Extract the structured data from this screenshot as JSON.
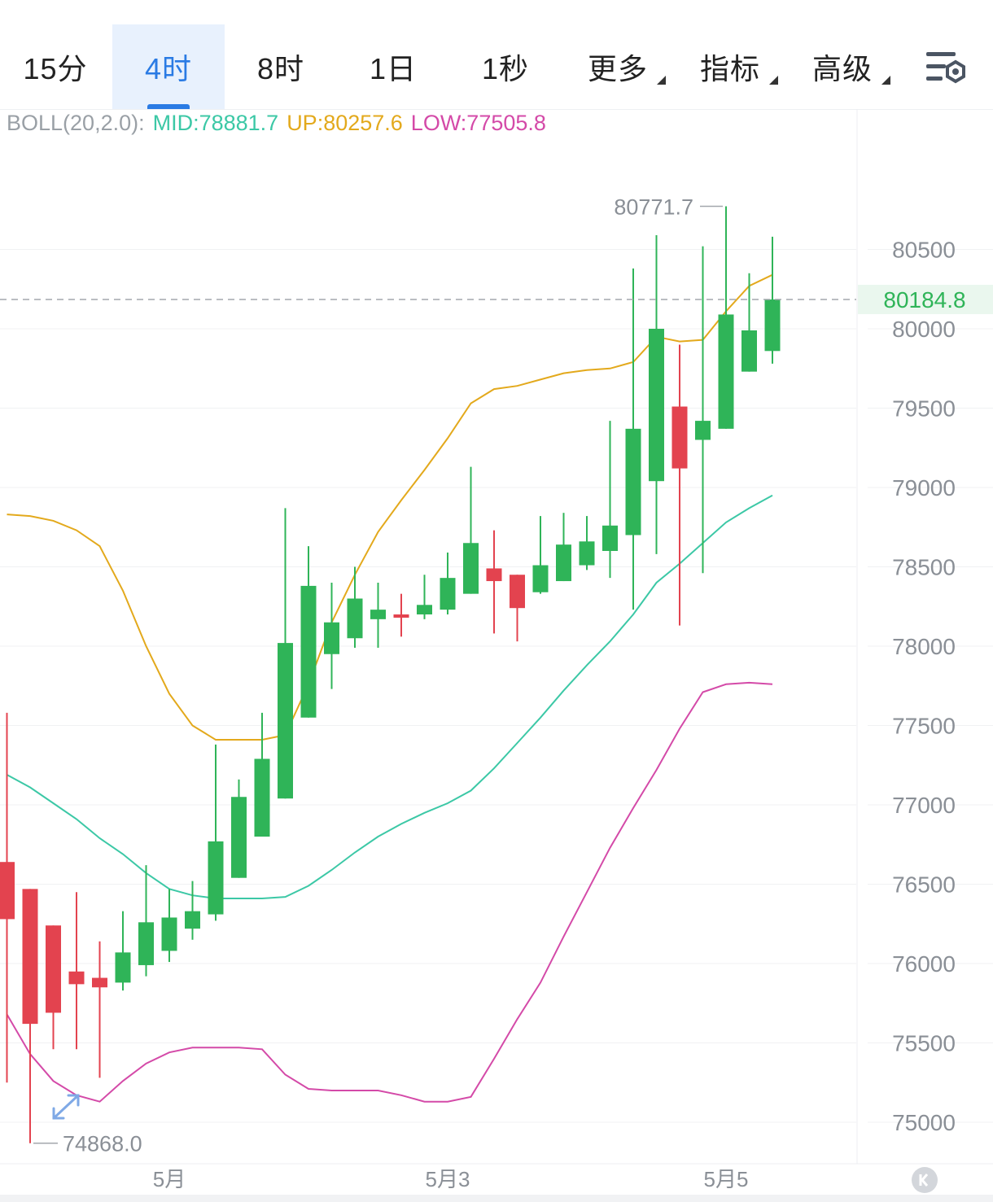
{
  "tabs": [
    {
      "label": "15分",
      "active": false,
      "dropdown": false
    },
    {
      "label": "4时",
      "active": true,
      "dropdown": false
    },
    {
      "label": "8时",
      "active": false,
      "dropdown": false
    },
    {
      "label": "1日",
      "active": false,
      "dropdown": false
    },
    {
      "label": "1秒",
      "active": false,
      "dropdown": false
    },
    {
      "label": "更多",
      "active": false,
      "dropdown": true
    },
    {
      "label": "指标",
      "active": false,
      "dropdown": true
    },
    {
      "label": "高级",
      "active": false,
      "dropdown": true
    }
  ],
  "settings_icon": "chart-settings-icon",
  "indicator": {
    "name": "BOLL(20,2.0):",
    "mid": "MID:78881.7",
    "up": "UP:80257.6",
    "low": "LOW:77505.8"
  },
  "colors": {
    "accent": "#2a7be4",
    "up_candle": "#2fb458",
    "down_candle": "#e3434f",
    "mid_line": "#3cc8a6",
    "up_line": "#e3a91c",
    "low_line": "#d44aa8",
    "current_price": "#2fb458"
  },
  "chart_data": {
    "type": "candlestick",
    "interval": "4时",
    "y_ticks": [
      "80500",
      "80000",
      "79500",
      "79000",
      "78500",
      "78000",
      "77500",
      "77000",
      "76500",
      "76000",
      "75500",
      "75000"
    ],
    "ylim": [
      74750,
      81000
    ],
    "x_labels": [
      {
        "label": "5月",
        "index": 7
      },
      {
        "label": "5月3",
        "index": 19
      },
      {
        "label": "5月5",
        "index": 31
      }
    ],
    "current_price": "80184.8",
    "max_label": "80771.7",
    "min_label": "74868.0",
    "candles": [
      {
        "o": 76640,
        "h": 77580,
        "l": 75250,
        "c": 76280
      },
      {
        "o": 76470,
        "h": 76470,
        "l": 74868,
        "c": 75620
      },
      {
        "o": 76240,
        "h": 76240,
        "l": 75460,
        "c": 75690
      },
      {
        "o": 75950,
        "h": 76450,
        "l": 75460,
        "c": 75870
      },
      {
        "o": 75910,
        "h": 76140,
        "l": 75280,
        "c": 75850
      },
      {
        "o": 75880,
        "h": 76330,
        "l": 75830,
        "c": 76070
      },
      {
        "o": 75990,
        "h": 76620,
        "l": 75920,
        "c": 76260
      },
      {
        "o": 76080,
        "h": 76470,
        "l": 76010,
        "c": 76290
      },
      {
        "o": 76220,
        "h": 76520,
        "l": 76150,
        "c": 76330
      },
      {
        "o": 76310,
        "h": 77380,
        "l": 76270,
        "c": 76770
      },
      {
        "o": 76540,
        "h": 77160,
        "l": 76540,
        "c": 77050
      },
      {
        "o": 76800,
        "h": 77580,
        "l": 76800,
        "c": 77290
      },
      {
        "o": 77040,
        "h": 78870,
        "l": 77040,
        "c": 78020
      },
      {
        "o": 77550,
        "h": 78630,
        "l": 77550,
        "c": 78380
      },
      {
        "o": 77950,
        "h": 78400,
        "l": 77730,
        "c": 78150
      },
      {
        "o": 78050,
        "h": 78500,
        "l": 77990,
        "c": 78300
      },
      {
        "o": 78170,
        "h": 78400,
        "l": 77990,
        "c": 78230
      },
      {
        "o": 78200,
        "h": 78330,
        "l": 78060,
        "c": 78180
      },
      {
        "o": 78200,
        "h": 78450,
        "l": 78170,
        "c": 78260
      },
      {
        "o": 78230,
        "h": 78590,
        "l": 78200,
        "c": 78430
      },
      {
        "o": 78330,
        "h": 79130,
        "l": 78330,
        "c": 78650
      },
      {
        "o": 78490,
        "h": 78730,
        "l": 78080,
        "c": 78410
      },
      {
        "o": 78450,
        "h": 78450,
        "l": 78030,
        "c": 78240
      },
      {
        "o": 78340,
        "h": 78820,
        "l": 78330,
        "c": 78510
      },
      {
        "o": 78410,
        "h": 78840,
        "l": 78410,
        "c": 78640
      },
      {
        "o": 78510,
        "h": 78820,
        "l": 78480,
        "c": 78660
      },
      {
        "o": 78600,
        "h": 79420,
        "l": 78430,
        "c": 78760
      },
      {
        "o": 78700,
        "h": 80380,
        "l": 78230,
        "c": 79370
      },
      {
        "o": 79040,
        "h": 80590,
        "l": 78580,
        "c": 80000
      },
      {
        "o": 79510,
        "h": 79900,
        "l": 78130,
        "c": 79120
      },
      {
        "o": 79300,
        "h": 80520,
        "l": 78460,
        "c": 79420
      },
      {
        "o": 79370,
        "h": 80771.7,
        "l": 79370,
        "c": 80090
      },
      {
        "o": 79730,
        "h": 80350,
        "l": 79730,
        "c": 79990
      },
      {
        "o": 79860,
        "h": 80580,
        "l": 79780,
        "c": 80184.8
      }
    ],
    "series": [
      {
        "key": "up",
        "values": [
          78830,
          78820,
          78790,
          78730,
          78630,
          78350,
          78000,
          77700,
          77500,
          77410,
          77410,
          77410,
          77440,
          77760,
          78150,
          78450,
          78720,
          78920,
          79110,
          79310,
          79530,
          79620,
          79640,
          79680,
          79720,
          79740,
          79750,
          79790,
          79950,
          79920,
          79930,
          80110,
          80270,
          80340
        ]
      },
      {
        "key": "mid",
        "values": [
          77190,
          77110,
          77010,
          76910,
          76790,
          76690,
          76570,
          76470,
          76430,
          76410,
          76410,
          76410,
          76420,
          76490,
          76590,
          76700,
          76800,
          76880,
          76950,
          77010,
          77090,
          77230,
          77390,
          77550,
          77720,
          77880,
          78030,
          78200,
          78400,
          78520,
          78650,
          78780,
          78870,
          78950
        ]
      },
      {
        "key": "low",
        "values": [
          75680,
          75430,
          75260,
          75170,
          75130,
          75260,
          75370,
          75440,
          75470,
          75470,
          75470,
          75460,
          75300,
          75210,
          75200,
          75200,
          75200,
          75170,
          75130,
          75130,
          75160,
          75400,
          75650,
          75880,
          76170,
          76450,
          76730,
          76980,
          77220,
          77480,
          77710,
          77760,
          77770,
          77760
        ]
      }
    ]
  }
}
